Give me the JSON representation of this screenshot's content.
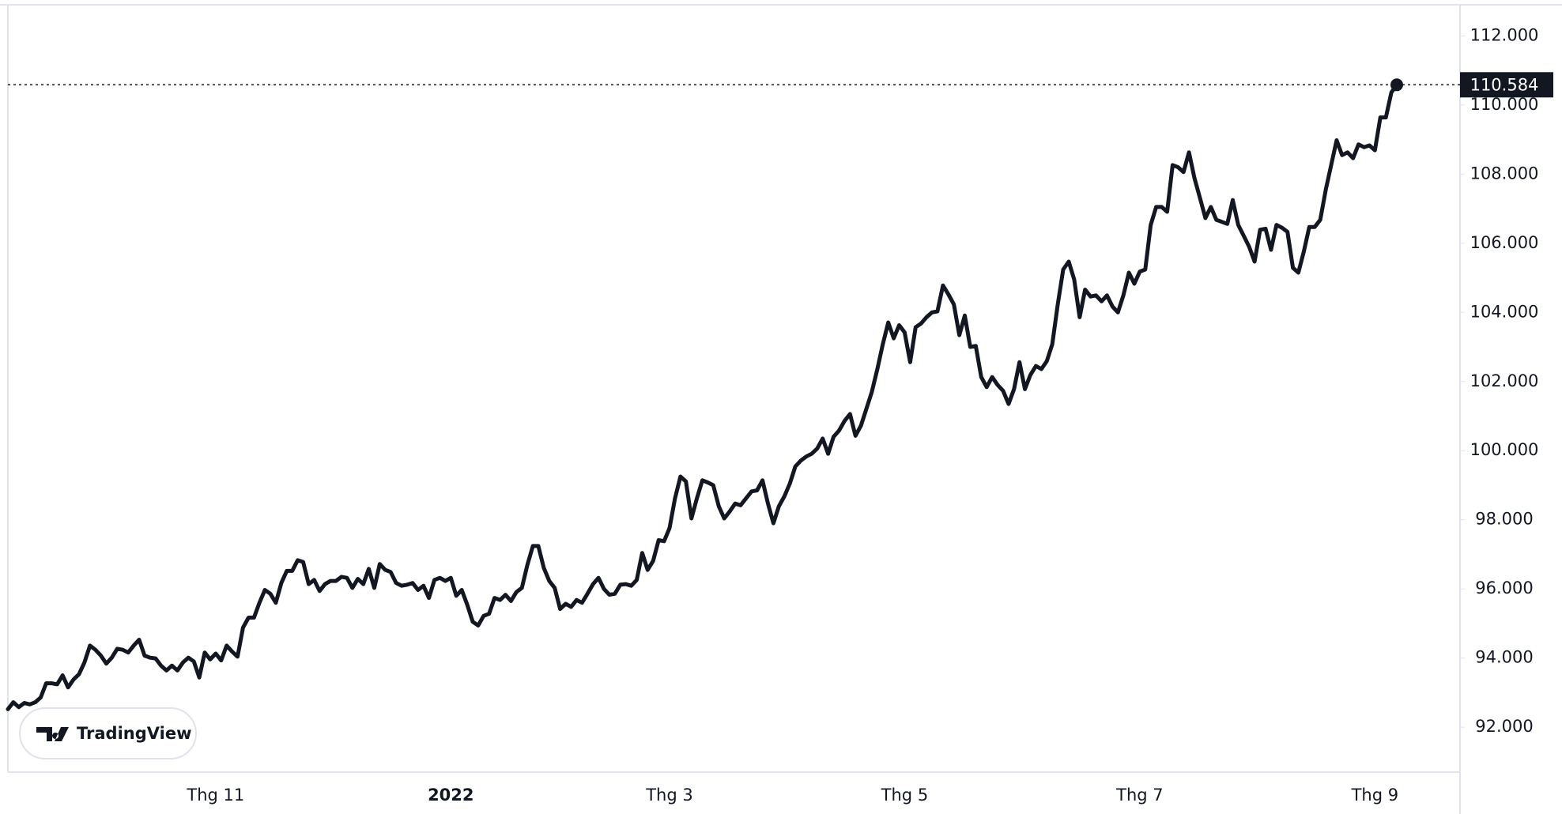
{
  "chart_data": {
    "type": "line",
    "watermark": "TradingView",
    "color": "#131722",
    "categories": [
      null,
      null,
      null,
      null,
      null,
      null,
      null,
      null,
      null,
      null,
      null,
      null,
      null,
      null,
      null,
      null,
      null,
      null,
      null,
      null,
      null,
      null,
      null,
      null,
      null,
      null,
      null,
      null,
      null,
      null,
      null,
      null,
      null,
      null,
      null,
      null,
      null,
      null,
      "Thg 11",
      null,
      null,
      null,
      null,
      null,
      null,
      null,
      null,
      null,
      null,
      null,
      null,
      null,
      null,
      null,
      null,
      null,
      null,
      null,
      null,
      null,
      null,
      null,
      null,
      null,
      null,
      null,
      null,
      null,
      null,
      null,
      null,
      null,
      null,
      null,
      null,
      null,
      null,
      null,
      null,
      null,
      null,
      "2022",
      null,
      null,
      null,
      null,
      null,
      null,
      null,
      null,
      null,
      null,
      null,
      null,
      null,
      null,
      null,
      null,
      null,
      null,
      null,
      null,
      null,
      null,
      null,
      null,
      null,
      null,
      null,
      null,
      null,
      null,
      null,
      null,
      null,
      null,
      null,
      null,
      null,
      null,
      null,
      "Thg 3",
      null,
      null,
      null,
      null,
      null,
      null,
      null,
      null,
      null,
      null,
      null,
      null,
      null,
      null,
      null,
      null,
      null,
      null,
      null,
      null,
      null,
      null,
      null,
      null,
      null,
      null,
      null,
      null,
      null,
      null,
      null,
      null,
      null,
      null,
      null,
      null,
      null,
      null,
      null,
      null,
      null,
      null,
      "Thg 5",
      null,
      null,
      null,
      null,
      null,
      null,
      null,
      null,
      null,
      null,
      null,
      null,
      null,
      null,
      null,
      null,
      null,
      null,
      null,
      null,
      null,
      null,
      null,
      null,
      null,
      null,
      null,
      null,
      null,
      null,
      null,
      null,
      null,
      null,
      null,
      null,
      null,
      null,
      null,
      null,
      null,
      null,
      "Thg 7",
      null,
      null,
      null,
      null,
      null,
      null,
      null,
      null,
      null,
      null,
      null,
      null,
      null,
      null,
      null,
      null,
      null,
      null,
      null,
      null,
      null,
      null,
      null,
      null,
      null,
      null,
      null,
      null,
      null,
      null,
      null,
      null,
      null,
      null,
      null,
      null,
      null,
      null,
      null,
      null,
      null,
      null,
      "Thg 9",
      null,
      null,
      null,
      null
    ],
    "values": [
      92.52,
      92.72,
      92.58,
      92.7,
      92.66,
      92.72,
      92.86,
      93.27,
      93.27,
      93.24,
      93.5,
      93.15,
      93.38,
      93.53,
      93.87,
      94.36,
      94.24,
      94.07,
      93.84,
      94.01,
      94.27,
      94.24,
      94.16,
      94.36,
      94.53,
      94.07,
      94.01,
      93.99,
      93.78,
      93.64,
      93.78,
      93.64,
      93.87,
      94.01,
      93.9,
      93.44,
      94.16,
      93.96,
      94.13,
      93.93,
      94.36,
      94.19,
      94.04,
      94.88,
      95.17,
      95.17,
      95.6,
      95.97,
      95.86,
      95.6,
      96.17,
      96.52,
      96.52,
      96.83,
      96.78,
      96.14,
      96.26,
      95.94,
      96.14,
      96.23,
      96.23,
      96.35,
      96.32,
      96.03,
      96.29,
      96.14,
      96.58,
      96.03,
      96.72,
      96.55,
      96.49,
      96.17,
      96.09,
      96.12,
      96.17,
      95.97,
      96.09,
      95.74,
      96.26,
      96.32,
      96.23,
      96.32,
      95.8,
      95.97,
      95.54,
      95.05,
      94.94,
      95.22,
      95.28,
      95.74,
      95.68,
      95.83,
      95.65,
      95.91,
      96.03,
      96.69,
      97.24,
      97.24,
      96.61,
      96.23,
      96.03,
      95.42,
      95.57,
      95.48,
      95.68,
      95.6,
      95.86,
      96.14,
      96.32,
      96.0,
      95.83,
      95.86,
      96.12,
      96.14,
      96.09,
      96.26,
      97.04,
      96.55,
      96.81,
      97.41,
      97.38,
      97.76,
      98.62,
      99.25,
      99.11,
      98.04,
      98.62,
      99.14,
      99.08,
      99.0,
      98.39,
      98.04,
      98.24,
      98.47,
      98.42,
      98.62,
      98.82,
      98.85,
      99.14,
      98.47,
      97.9,
      98.39,
      98.68,
      99.05,
      99.54,
      99.71,
      99.83,
      99.91,
      100.06,
      100.35,
      99.91,
      100.4,
      100.58,
      100.86,
      101.06,
      100.43,
      100.72,
      101.21,
      101.7,
      102.36,
      103.08,
      103.71,
      103.25,
      103.63,
      103.42,
      102.56,
      103.57,
      103.68,
      103.86,
      104.0,
      104.03,
      104.78,
      104.52,
      104.23,
      103.34,
      103.91,
      103.0,
      103.03,
      102.13,
      101.84,
      102.13,
      101.9,
      101.73,
      101.35,
      101.78,
      102.56,
      101.78,
      102.19,
      102.45,
      102.36,
      102.59,
      103.08,
      104.23,
      105.24,
      105.47,
      104.95,
      103.86,
      104.66,
      104.46,
      104.49,
      104.32,
      104.49,
      104.17,
      104.0,
      104.49,
      105.15,
      104.83,
      105.18,
      105.24,
      106.53,
      107.05,
      107.05,
      106.91,
      108.26,
      108.2,
      108.06,
      108.63,
      107.88,
      107.31,
      106.73,
      107.05,
      106.68,
      106.62,
      106.56,
      107.25,
      106.53,
      106.22,
      105.9,
      105.47,
      106.39,
      106.42,
      105.81,
      106.53,
      106.45,
      106.33,
      105.29,
      105.15,
      105.76,
      106.47,
      106.47,
      106.68,
      107.54,
      108.26,
      108.98,
      108.55,
      108.63,
      108.46,
      108.86,
      108.78,
      108.83,
      108.69,
      109.64,
      109.64,
      110.36,
      110.584
    ],
    "last_value": {
      "value": 110.584,
      "label": "110.584"
    },
    "ylim": [
      90.7,
      112.9
    ],
    "yticks": [
      {
        "value": 92,
        "label": "92.000"
      },
      {
        "value": 94,
        "label": "94.000"
      },
      {
        "value": 96,
        "label": "96.000"
      },
      {
        "value": 98,
        "label": "98.000"
      },
      {
        "value": 100,
        "label": "100.000"
      },
      {
        "value": 102,
        "label": "102.000"
      },
      {
        "value": 104,
        "label": "104.000"
      },
      {
        "value": 106,
        "label": "106.000"
      },
      {
        "value": 108,
        "label": "108.000"
      },
      {
        "value": 110,
        "label": "110.000"
      },
      {
        "value": 112,
        "label": "112.000"
      }
    ]
  }
}
